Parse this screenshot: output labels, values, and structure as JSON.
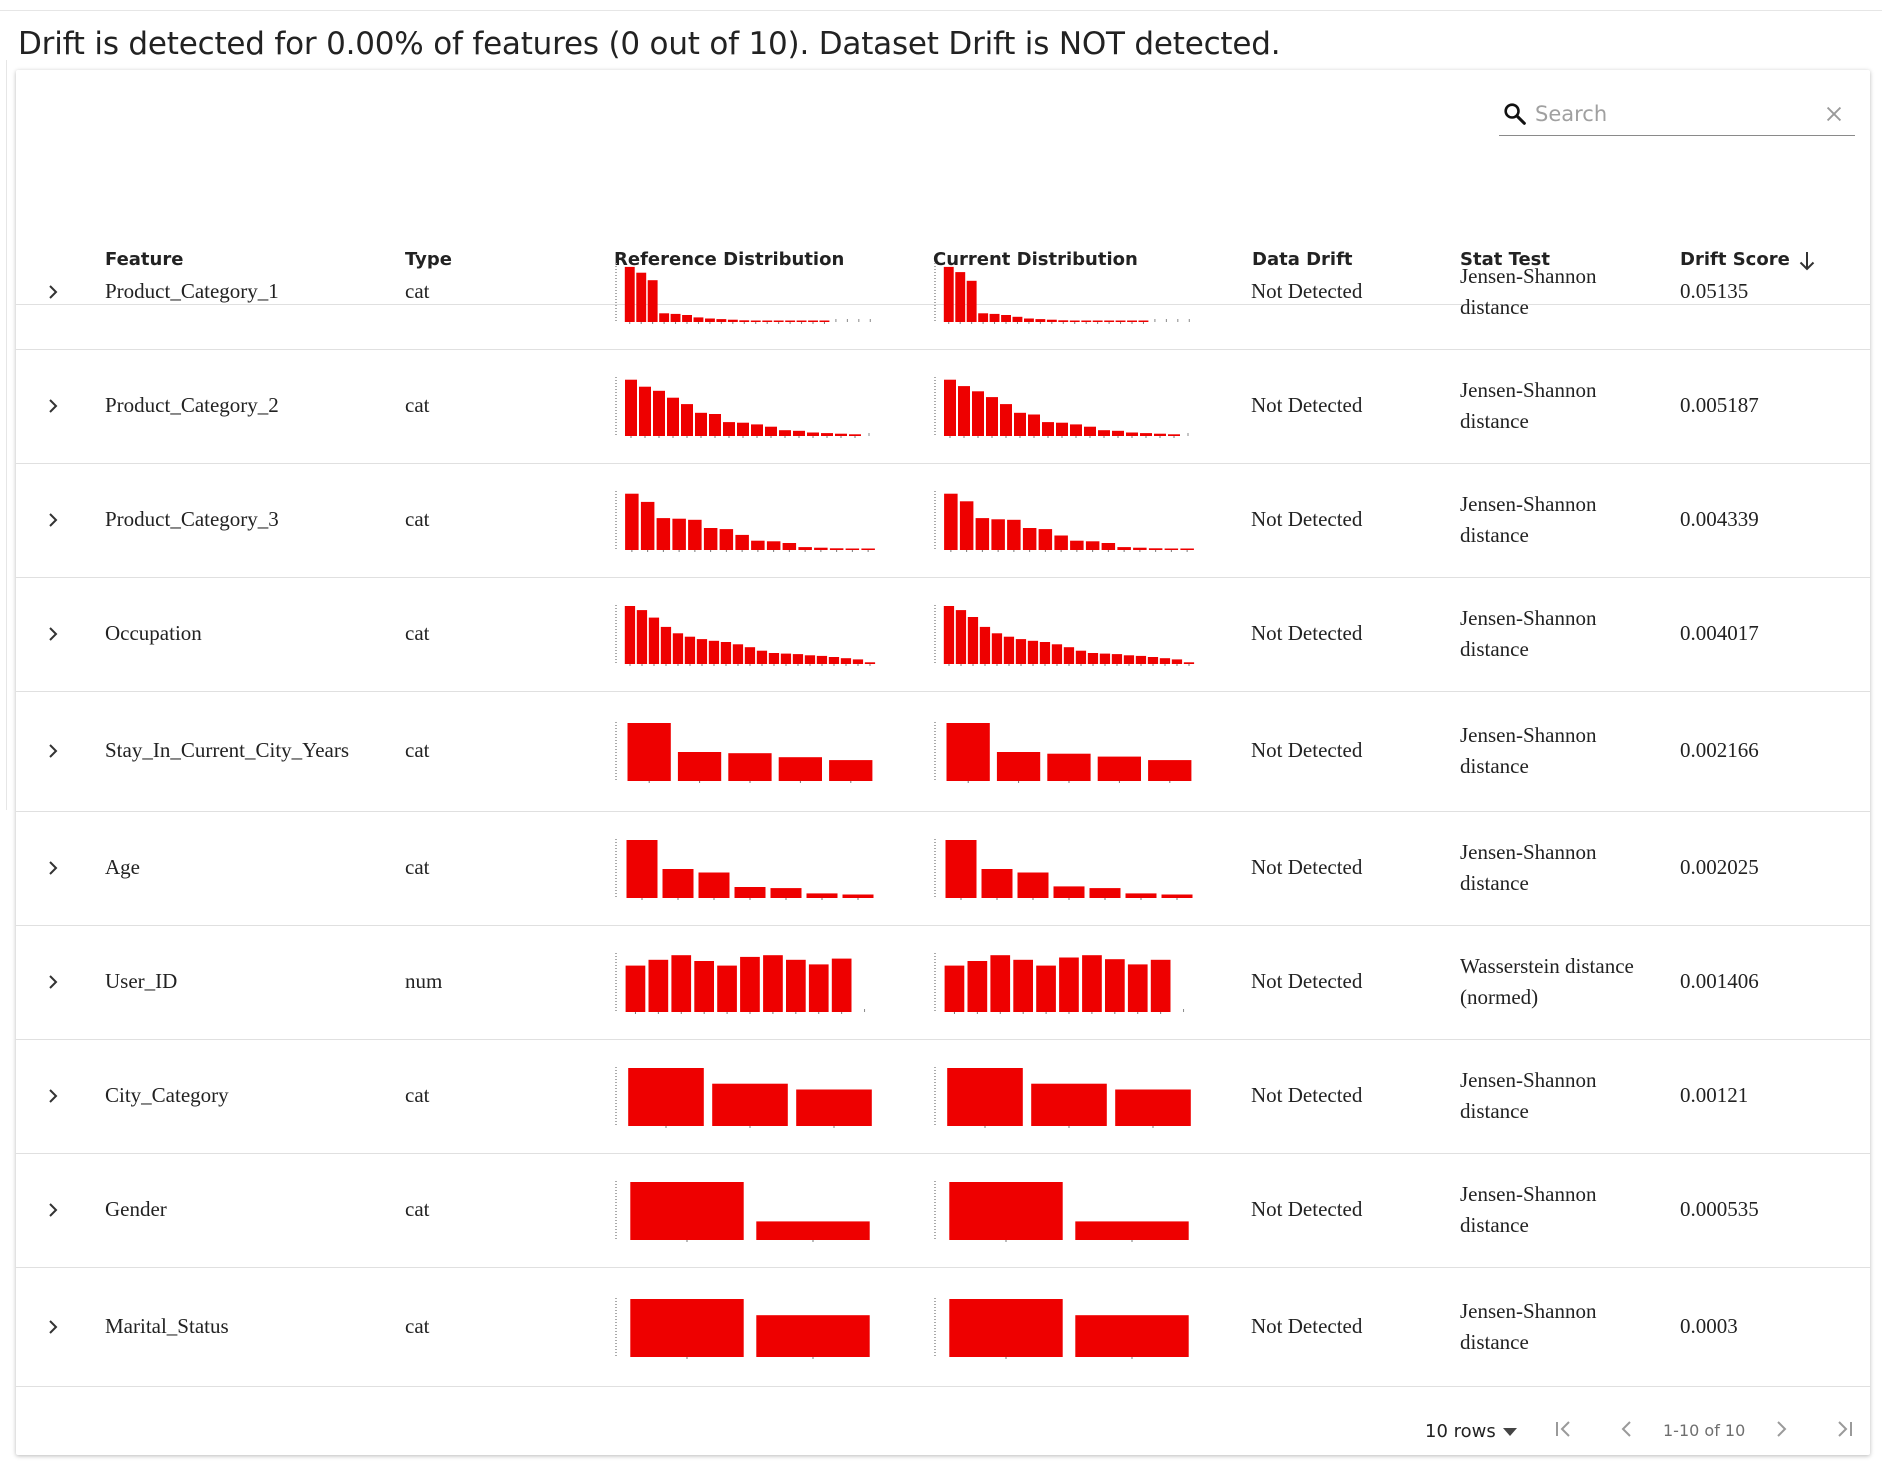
{
  "summary": "Drift is detected for 0.00% of features (0 out of 10). Dataset Drift is NOT detected.",
  "search": {
    "placeholder": "Search",
    "value": ""
  },
  "columns": {
    "feature": "Feature",
    "type": "Type",
    "reference": "Reference Distribution",
    "current": "Current Distribution",
    "drift": "Data Drift",
    "stat": "Stat Test",
    "score": "Drift Score"
  },
  "colors": {
    "bar": "#ee0000",
    "text": "#222222",
    "divider": "#e0e0e0"
  },
  "rows": [
    {
      "feature": "Product_Category_1",
      "type": "cat",
      "drift": "Not Detected",
      "stat": "Jensen-Shannon distance",
      "score": "0.05135",
      "ref": [
        0.95,
        0.85,
        0.72,
        0.15,
        0.14,
        0.12,
        0.08,
        0.06,
        0.05,
        0.04,
        0.03,
        0.02,
        0.02,
        0.01,
        0.01,
        0.01,
        0.01,
        0.01,
        0.0,
        0.0,
        0.0,
        0.0
      ],
      "cur": [
        0.95,
        0.86,
        0.71,
        0.15,
        0.14,
        0.12,
        0.09,
        0.06,
        0.05,
        0.04,
        0.03,
        0.02,
        0.02,
        0.01,
        0.01,
        0.01,
        0.01,
        0.01,
        0.0,
        0.0,
        0.0,
        0.0
      ]
    },
    {
      "feature": "Product_Category_2",
      "type": "cat",
      "drift": "Not Detected",
      "stat": "Jensen-Shannon distance",
      "score": "0.005187",
      "ref": [
        0.97,
        0.85,
        0.78,
        0.66,
        0.55,
        0.4,
        0.38,
        0.24,
        0.23,
        0.2,
        0.16,
        0.1,
        0.09,
        0.06,
        0.05,
        0.04,
        0.03,
        0.0
      ],
      "cur": [
        0.97,
        0.86,
        0.77,
        0.67,
        0.55,
        0.4,
        0.37,
        0.24,
        0.23,
        0.2,
        0.16,
        0.1,
        0.09,
        0.06,
        0.05,
        0.04,
        0.03,
        0.0
      ]
    },
    {
      "feature": "Product_Category_3",
      "type": "cat",
      "drift": "Not Detected",
      "stat": "Jensen-Shannon distance",
      "score": "0.004339",
      "ref": [
        0.97,
        0.83,
        0.55,
        0.54,
        0.52,
        0.38,
        0.36,
        0.26,
        0.16,
        0.15,
        0.12,
        0.05,
        0.04,
        0.03,
        0.02,
        0.02
      ],
      "cur": [
        0.97,
        0.84,
        0.55,
        0.53,
        0.52,
        0.38,
        0.36,
        0.25,
        0.16,
        0.15,
        0.12,
        0.05,
        0.04,
        0.03,
        0.02,
        0.02
      ]
    },
    {
      "feature": "Occupation",
      "type": "cat",
      "drift": "Not Detected",
      "stat": "Jensen-Shannon distance",
      "score": "0.004017",
      "ref": [
        1.0,
        0.93,
        0.8,
        0.64,
        0.53,
        0.47,
        0.43,
        0.4,
        0.38,
        0.34,
        0.29,
        0.23,
        0.19,
        0.18,
        0.17,
        0.15,
        0.14,
        0.12,
        0.1,
        0.08,
        0.03
      ],
      "cur": [
        1.0,
        0.93,
        0.81,
        0.64,
        0.53,
        0.47,
        0.43,
        0.4,
        0.38,
        0.34,
        0.29,
        0.23,
        0.19,
        0.18,
        0.17,
        0.15,
        0.14,
        0.12,
        0.1,
        0.08,
        0.03
      ]
    },
    {
      "feature": "Stay_In_Current_City_Years",
      "type": "cat",
      "drift": "Not Detected",
      "stat": "Jensen-Shannon distance",
      "score": "0.002166",
      "ref": [
        1.0,
        0.5,
        0.48,
        0.41,
        0.36
      ],
      "cur": [
        1.0,
        0.5,
        0.47,
        0.42,
        0.36
      ]
    },
    {
      "feature": "Age",
      "type": "cat",
      "drift": "Not Detected",
      "stat": "Jensen-Shannon distance",
      "score": "0.002025",
      "ref": [
        1.0,
        0.5,
        0.44,
        0.19,
        0.17,
        0.08,
        0.06
      ],
      "cur": [
        1.0,
        0.5,
        0.44,
        0.2,
        0.17,
        0.08,
        0.06
      ]
    },
    {
      "feature": "User_ID",
      "type": "num",
      "drift": "Not Detected",
      "stat": "Wasserstein distance (normed)",
      "score": "0.001406",
      "ref": [
        0.8,
        0.9,
        0.98,
        0.88,
        0.8,
        0.95,
        0.98,
        0.9,
        0.82,
        0.92,
        0.0
      ],
      "cur": [
        0.8,
        0.88,
        0.98,
        0.9,
        0.8,
        0.94,
        0.98,
        0.91,
        0.82,
        0.9,
        0.0
      ]
    },
    {
      "feature": "City_Category",
      "type": "cat",
      "drift": "Not Detected",
      "stat": "Jensen-Shannon distance",
      "score": "0.00121",
      "ref": [
        1.0,
        0.73,
        0.63
      ],
      "cur": [
        1.0,
        0.73,
        0.63
      ]
    },
    {
      "feature": "Gender",
      "type": "cat",
      "drift": "Not Detected",
      "stat": "Jensen-Shannon distance",
      "score": "0.000535",
      "ref": [
        1.0,
        0.32
      ],
      "cur": [
        1.0,
        0.32
      ]
    },
    {
      "feature": "Marital_Status",
      "type": "cat",
      "drift": "Not Detected",
      "stat": "Jensen-Shannon distance",
      "score": "0.0003",
      "ref": [
        1.0,
        0.72
      ],
      "cur": [
        1.0,
        0.72
      ]
    }
  ],
  "pagination": {
    "rows_label": "10 rows",
    "range": "1-10 of 10"
  }
}
